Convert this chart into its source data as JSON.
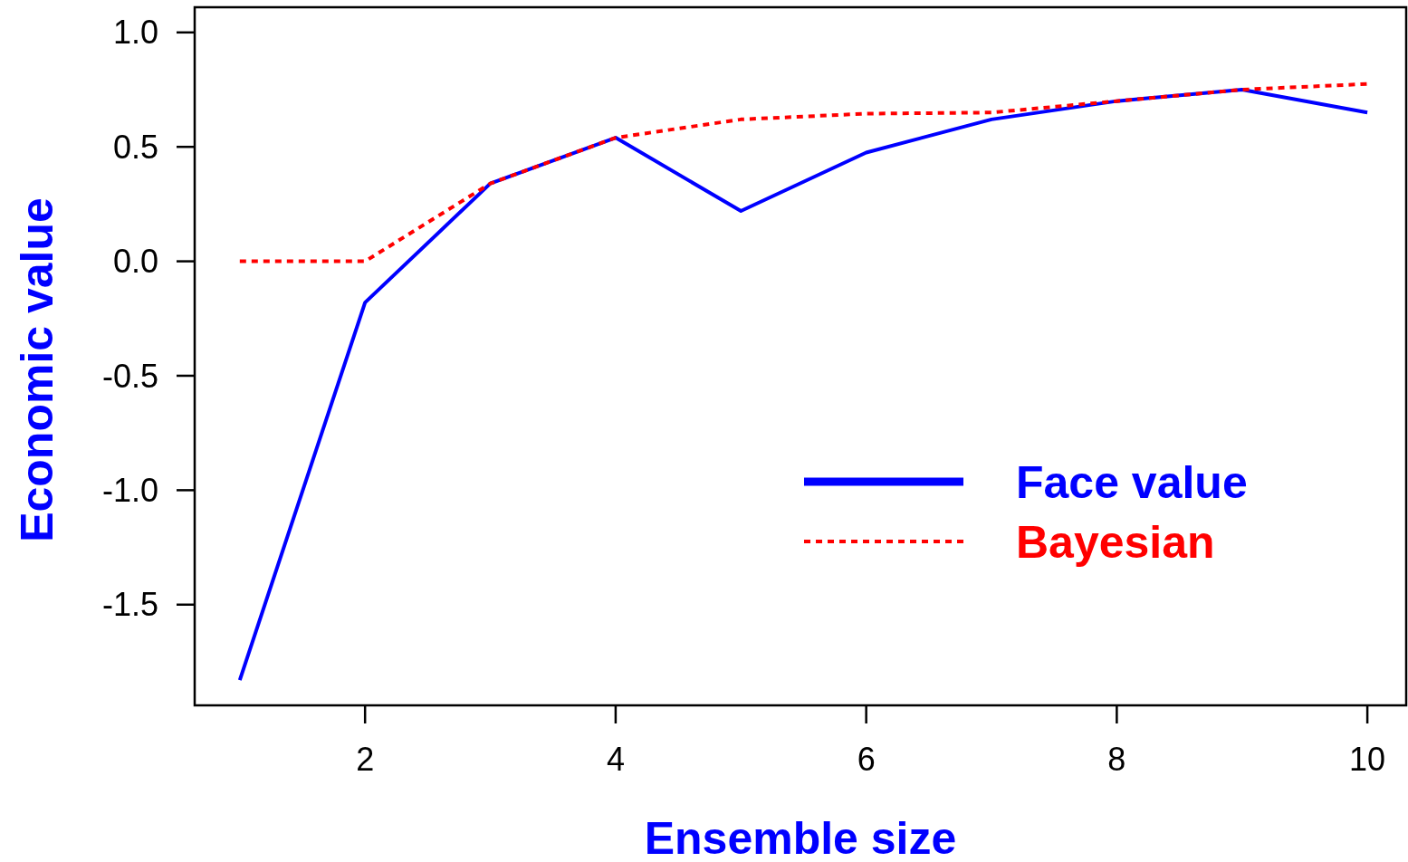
{
  "chart_data": {
    "type": "line",
    "xlabel": "Ensemble size",
    "ylabel": "Economic value",
    "x": [
      1,
      2,
      3,
      4,
      5,
      6,
      7,
      8,
      9,
      10
    ],
    "series": [
      {
        "name": "Face value",
        "color": "#0000ff",
        "line_style": "solid",
        "values": [
          -1.83,
          -0.18,
          0.34,
          0.54,
          0.22,
          0.475,
          0.62,
          0.7,
          0.75,
          0.65
        ]
      },
      {
        "name": "Bayesian",
        "color": "#ff0000",
        "line_style": "dotted",
        "values": [
          0,
          0,
          0.34,
          0.54,
          0.62,
          0.645,
          0.65,
          0.7,
          0.75,
          0.775
        ]
      }
    ],
    "xlim": [
      0.64,
      10.31
    ],
    "ylim": [
      -1.94,
      1.11
    ],
    "xticks": [
      2,
      4,
      6,
      8,
      10
    ],
    "yticks": [
      {
        "value": -1.5,
        "label": "-1.5"
      },
      {
        "value": -1,
        "label": "-1.0"
      },
      {
        "value": -0.5,
        "label": "-0.5"
      },
      {
        "value": 0,
        "label": "0.0"
      },
      {
        "value": 0.5,
        "label": "0.5"
      },
      {
        "value": 1,
        "label": "1.0"
      }
    ],
    "grid": false,
    "legend": "bottom right",
    "marker": "none"
  }
}
